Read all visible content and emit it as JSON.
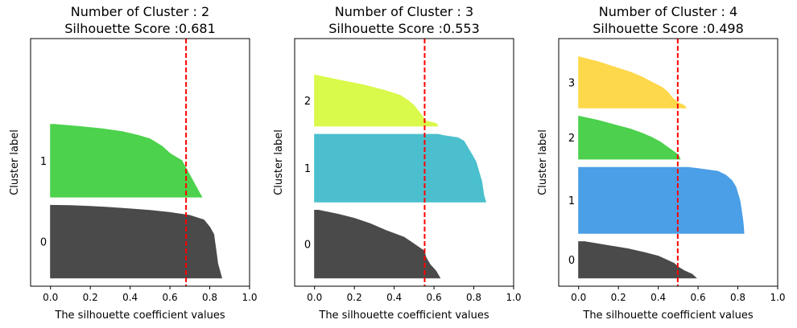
{
  "chart_data": [
    {
      "type": "silhouette",
      "title": "Number of Cluster : 2",
      "subtitle": "Silhouette Score :0.681",
      "xlabel": "The silhouette coefficient values",
      "ylabel": "Cluster label",
      "xlim": [
        -0.1,
        1.0
      ],
      "xticks": [
        0.0,
        0.2,
        0.4,
        0.6,
        0.8,
        1.0
      ],
      "xtick_labels": [
        "0.0",
        "0.2",
        "0.4",
        "0.6",
        "0.8",
        "1.0"
      ],
      "average_score": 0.681,
      "grid": false,
      "clusters": [
        {
          "label": "0",
          "color": "#4a4a4a",
          "start": 10,
          "size": 88,
          "profile": [
            [
              0,
              0.86
            ],
            [
              0.05,
              0.855
            ],
            [
              0.1,
              0.85
            ],
            [
              0.2,
              0.84
            ],
            [
              0.3,
              0.835
            ],
            [
              0.4,
              0.83
            ],
            [
              0.5,
              0.825
            ],
            [
              0.6,
              0.82
            ],
            [
              0.7,
              0.8
            ],
            [
              0.8,
              0.77
            ],
            [
              0.86,
              0.7
            ],
            [
              0.9,
              0.6
            ],
            [
              0.93,
              0.5
            ],
            [
              0.95,
              0.4
            ],
            [
              0.97,
              0.3
            ],
            [
              0.985,
              0.2
            ],
            [
              0.995,
              0.1
            ],
            [
              1,
              0.0
            ]
          ]
        },
        {
          "label": "1",
          "color": "#4cd24c",
          "start": 108,
          "size": 88,
          "profile": [
            [
              0,
              0.76
            ],
            [
              0.05,
              0.75
            ],
            [
              0.1,
              0.74
            ],
            [
              0.2,
              0.72
            ],
            [
              0.3,
              0.7
            ],
            [
              0.4,
              0.68
            ],
            [
              0.5,
              0.66
            ],
            [
              0.6,
              0.6
            ],
            [
              0.7,
              0.56
            ],
            [
              0.8,
              0.5
            ],
            [
              0.85,
              0.44
            ],
            [
              0.9,
              0.36
            ],
            [
              0.94,
              0.26
            ],
            [
              0.97,
              0.15
            ],
            [
              1,
              0.02
            ]
          ]
        }
      ]
    },
    {
      "type": "silhouette",
      "title": "Number of Cluster : 3",
      "subtitle": "Silhouette Score :0.553",
      "xlabel": "The silhouette coefficient values",
      "ylabel": "Cluster label",
      "xlim": [
        -0.1,
        1.0
      ],
      "xticks": [
        0.0,
        0.2,
        0.4,
        0.6,
        0.8,
        1.0
      ],
      "xtick_labels": [
        "0.0",
        "0.2",
        "0.4",
        "0.6",
        "0.8",
        "1.0"
      ],
      "average_score": 0.553,
      "grid": false,
      "clusters": [
        {
          "label": "0",
          "color": "#4a4a4a",
          "start": 10,
          "size": 82,
          "profile": [
            [
              0,
              0.63
            ],
            [
              0.05,
              0.62
            ],
            [
              0.1,
              0.61
            ],
            [
              0.2,
              0.58
            ],
            [
              0.3,
              0.56
            ],
            [
              0.4,
              0.55
            ],
            [
              0.5,
              0.5
            ],
            [
              0.6,
              0.45
            ],
            [
              0.7,
              0.36
            ],
            [
              0.8,
              0.28
            ],
            [
              0.88,
              0.2
            ],
            [
              0.94,
              0.12
            ],
            [
              1,
              0.02
            ]
          ]
        },
        {
          "label": "1",
          "color": "#4bbfcd",
          "start": 102,
          "size": 82,
          "profile": [
            [
              0,
              0.86
            ],
            [
              0.05,
              0.855
            ],
            [
              0.1,
              0.85
            ],
            [
              0.2,
              0.845
            ],
            [
              0.3,
              0.84
            ],
            [
              0.4,
              0.83
            ],
            [
              0.5,
              0.82
            ],
            [
              0.6,
              0.81
            ],
            [
              0.7,
              0.79
            ],
            [
              0.8,
              0.77
            ],
            [
              0.9,
              0.75
            ],
            [
              0.95,
              0.72
            ],
            [
              0.98,
              0.65
            ],
            [
              1,
              0.62
            ]
          ]
        },
        {
          "label": "2",
          "color": "#d9f94b",
          "start": 194,
          "size": 62,
          "profile": [
            [
              0,
              0.62
            ],
            [
              0.05,
              0.61
            ],
            [
              0.1,
              0.56
            ],
            [
              0.2,
              0.54
            ],
            [
              0.3,
              0.52
            ],
            [
              0.4,
              0.5
            ],
            [
              0.5,
              0.47
            ],
            [
              0.6,
              0.43
            ],
            [
              0.7,
              0.35
            ],
            [
              0.8,
              0.25
            ],
            [
              0.9,
              0.12
            ],
            [
              0.95,
              0.06
            ],
            [
              1,
              0.0
            ]
          ]
        }
      ]
    },
    {
      "type": "silhouette",
      "title": "Number of Cluster : 4",
      "subtitle": "Silhouette Score :0.498",
      "xlabel": "The silhouette coefficient values",
      "ylabel": "Cluster label",
      "xlim": [
        -0.1,
        1.0
      ],
      "xticks": [
        0.0,
        0.2,
        0.4,
        0.6,
        0.8,
        1.0
      ],
      "xtick_labels": [
        "0.0",
        "0.2",
        "0.4",
        "0.6",
        "0.8",
        "1.0"
      ],
      "average_score": 0.498,
      "grid": false,
      "clusters": [
        {
          "label": "0",
          "color": "#4a4a4a",
          "start": 10,
          "size": 44,
          "profile": [
            [
              0,
              0.59
            ],
            [
              0.1,
              0.57
            ],
            [
              0.2,
              0.53
            ],
            [
              0.3,
              0.5
            ],
            [
              0.4,
              0.48
            ],
            [
              0.5,
              0.44
            ],
            [
              0.6,
              0.4
            ],
            [
              0.7,
              0.33
            ],
            [
              0.8,
              0.25
            ],
            [
              0.9,
              0.14
            ],
            [
              1,
              0.03
            ]
          ]
        },
        {
          "label": "1",
          "color": "#4a9fe6",
          "start": 64,
          "size": 80,
          "profile": [
            [
              0,
              0.83
            ],
            [
              0.1,
              0.828
            ],
            [
              0.2,
              0.825
            ],
            [
              0.3,
              0.82
            ],
            [
              0.4,
              0.815
            ],
            [
              0.5,
              0.81
            ],
            [
              0.6,
              0.8
            ],
            [
              0.7,
              0.79
            ],
            [
              0.8,
              0.77
            ],
            [
              0.88,
              0.74
            ],
            [
              0.94,
              0.7
            ],
            [
              0.98,
              0.6
            ],
            [
              1,
              0.55
            ]
          ]
        },
        {
          "label": "2",
          "color": "#4dd04d",
          "start": 154,
          "size": 52,
          "profile": [
            [
              0,
              0.51
            ],
            [
              0.1,
              0.5
            ],
            [
              0.2,
              0.47
            ],
            [
              0.3,
              0.44
            ],
            [
              0.4,
              0.41
            ],
            [
              0.5,
              0.37
            ],
            [
              0.6,
              0.32
            ],
            [
              0.7,
              0.26
            ],
            [
              0.8,
              0.18
            ],
            [
              0.9,
              0.1
            ],
            [
              1,
              0.0
            ]
          ]
        },
        {
          "label": "3",
          "color": "#fdd84b",
          "start": 216,
          "size": 62,
          "profile": [
            [
              0,
              0.54
            ],
            [
              0.05,
              0.53
            ],
            [
              0.1,
              0.5
            ],
            [
              0.2,
              0.47
            ],
            [
              0.3,
              0.45
            ],
            [
              0.4,
              0.42
            ],
            [
              0.5,
              0.37
            ],
            [
              0.6,
              0.32
            ],
            [
              0.7,
              0.26
            ],
            [
              0.8,
              0.18
            ],
            [
              0.9,
              0.1
            ],
            [
              1,
              0.0
            ]
          ]
        }
      ]
    }
  ]
}
